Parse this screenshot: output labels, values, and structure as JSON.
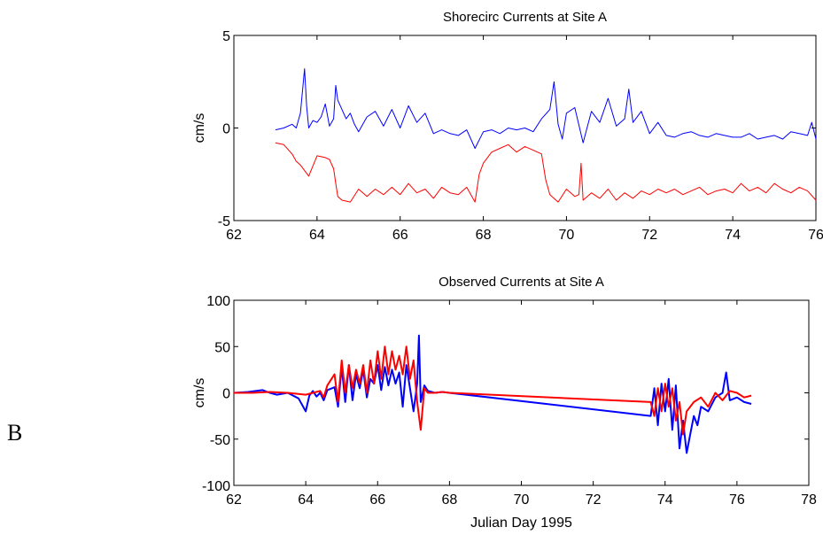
{
  "panel_label": "B",
  "chart_data": [
    {
      "type": "line",
      "title": "Shorecirc Currents at Site A",
      "xlabel": "",
      "ylabel": "cm/s",
      "xlim": [
        62,
        76
      ],
      "ylim": [
        -5,
        5
      ],
      "xticks": [
        62,
        64,
        66,
        68,
        70,
        72,
        74,
        76
      ],
      "yticks": [
        -5,
        0,
        5
      ],
      "grid": false,
      "series": [
        {
          "color": "#0000ff",
          "x": [
            63.0,
            63.2,
            63.4,
            63.5,
            63.6,
            63.7,
            63.75,
            63.8,
            63.9,
            64.0,
            64.1,
            64.2,
            64.3,
            64.4,
            64.45,
            64.5,
            64.6,
            64.7,
            64.8,
            64.9,
            65.0,
            65.2,
            65.4,
            65.6,
            65.8,
            66.0,
            66.2,
            66.4,
            66.6,
            66.8,
            67.0,
            67.2,
            67.4,
            67.6,
            67.8,
            68.0,
            68.2,
            68.4,
            68.6,
            68.8,
            69.0,
            69.2,
            69.4,
            69.6,
            69.7,
            69.8,
            69.9,
            70.0,
            70.2,
            70.4,
            70.6,
            70.8,
            71.0,
            71.2,
            71.4,
            71.5,
            71.6,
            71.8,
            72.0,
            72.2,
            72.4,
            72.6,
            72.8,
            73.0,
            73.2,
            73.4,
            73.6,
            73.8,
            74.0,
            74.2,
            74.4,
            74.6,
            74.8,
            75.0,
            75.2,
            75.4,
            75.6,
            75.8,
            75.9,
            76.0
          ],
          "y": [
            -0.1,
            0.0,
            0.2,
            0.0,
            0.8,
            3.2,
            1.2,
            0.0,
            0.4,
            0.3,
            0.6,
            1.3,
            0.1,
            0.5,
            2.3,
            1.5,
            1.0,
            0.5,
            0.8,
            0.2,
            -0.2,
            0.6,
            0.9,
            0.1,
            1.0,
            0.0,
            1.2,
            0.3,
            0.8,
            -0.3,
            -0.1,
            -0.3,
            -0.4,
            -0.1,
            -1.1,
            -0.2,
            -0.1,
            -0.3,
            0.0,
            -0.1,
            0.0,
            -0.2,
            0.5,
            1.0,
            2.5,
            0.2,
            -0.6,
            0.8,
            1.1,
            -0.8,
            0.9,
            0.3,
            1.6,
            0.1,
            0.5,
            2.1,
            0.3,
            0.9,
            -0.3,
            0.3,
            -0.4,
            -0.5,
            -0.3,
            -0.2,
            -0.4,
            -0.5,
            -0.3,
            -0.4,
            -0.5,
            -0.5,
            -0.3,
            -0.6,
            -0.5,
            -0.4,
            -0.6,
            -0.2,
            -0.3,
            -0.4,
            0.3,
            -0.6
          ]
        },
        {
          "color": "#ff0000",
          "x": [
            63.0,
            63.2,
            63.4,
            63.5,
            63.6,
            63.8,
            64.0,
            64.2,
            64.3,
            64.4,
            64.45,
            64.5,
            64.6,
            64.8,
            65.0,
            65.2,
            65.4,
            65.6,
            65.8,
            66.0,
            66.2,
            66.4,
            66.6,
            66.8,
            67.0,
            67.2,
            67.4,
            67.6,
            67.8,
            67.9,
            68.0,
            68.2,
            68.4,
            68.6,
            68.8,
            69.0,
            69.2,
            69.4,
            69.5,
            69.6,
            69.8,
            70.0,
            70.2,
            70.3,
            70.35,
            70.4,
            70.6,
            70.8,
            71.0,
            71.2,
            71.4,
            71.6,
            71.8,
            72.0,
            72.2,
            72.4,
            72.6,
            72.8,
            73.0,
            73.2,
            73.4,
            73.6,
            73.8,
            74.0,
            74.2,
            74.4,
            74.6,
            74.8,
            75.0,
            75.2,
            75.4,
            75.6,
            75.8,
            76.0
          ],
          "y": [
            -0.8,
            -0.9,
            -1.4,
            -1.8,
            -2.0,
            -2.6,
            -1.5,
            -1.6,
            -1.7,
            -2.2,
            -3.0,
            -3.7,
            -3.9,
            -4.0,
            -3.3,
            -3.7,
            -3.3,
            -3.6,
            -3.2,
            -3.6,
            -3.0,
            -3.5,
            -3.3,
            -3.8,
            -3.2,
            -3.5,
            -3.6,
            -3.2,
            -4.0,
            -2.5,
            -1.9,
            -1.3,
            -1.1,
            -0.9,
            -1.3,
            -1.0,
            -1.2,
            -1.4,
            -2.8,
            -3.6,
            -4.0,
            -3.3,
            -3.7,
            -3.6,
            -1.9,
            -3.9,
            -3.5,
            -3.8,
            -3.3,
            -3.9,
            -3.5,
            -3.8,
            -3.4,
            -3.6,
            -3.3,
            -3.5,
            -3.3,
            -3.6,
            -3.4,
            -3.2,
            -3.6,
            -3.4,
            -3.3,
            -3.5,
            -3.0,
            -3.4,
            -3.2,
            -3.5,
            -3.0,
            -3.3,
            -3.5,
            -3.2,
            -3.4,
            -3.9
          ]
        }
      ]
    },
    {
      "type": "line",
      "title": "Observed Currents at Site A",
      "xlabel": "Julian Day 1995",
      "ylabel": "cm/s",
      "xlim": [
        62,
        78
      ],
      "ylim": [
        -100,
        100
      ],
      "xticks": [
        62,
        64,
        66,
        68,
        70,
        72,
        74,
        76,
        78
      ],
      "yticks": [
        -100,
        -50,
        0,
        50,
        100
      ],
      "grid": false,
      "series": [
        {
          "color": "#0000ff",
          "x": [
            62.0,
            62.4,
            62.8,
            63.0,
            63.2,
            63.5,
            63.8,
            64.0,
            64.1,
            64.2,
            64.3,
            64.4,
            64.5,
            64.6,
            64.8,
            64.9,
            65.0,
            65.1,
            65.2,
            65.3,
            65.4,
            65.5,
            65.6,
            65.7,
            65.8,
            65.9,
            66.0,
            66.1,
            66.2,
            66.3,
            66.4,
            66.5,
            66.6,
            66.7,
            66.8,
            66.9,
            67.0,
            67.1,
            67.15,
            67.2,
            67.3,
            67.4,
            67.6,
            67.8,
            68.0,
            73.6,
            73.7,
            73.8,
            73.9,
            74.0,
            74.1,
            74.2,
            74.3,
            74.4,
            74.5,
            74.6,
            74.7,
            74.8,
            74.9,
            75.0,
            75.2,
            75.4,
            75.6,
            75.7,
            75.8,
            76.0,
            76.2,
            76.4
          ],
          "y": [
            0,
            1,
            3,
            0,
            -2,
            0,
            -6,
            -20,
            -3,
            2,
            -4,
            0,
            -8,
            3,
            6,
            -15,
            28,
            -10,
            30,
            -8,
            20,
            5,
            25,
            -5,
            15,
            10,
            30,
            3,
            28,
            8,
            25,
            10,
            22,
            -15,
            30,
            5,
            -20,
            10,
            62,
            -10,
            8,
            2,
            0,
            1,
            0,
            -25,
            5,
            -35,
            10,
            -20,
            15,
            -40,
            8,
            -60,
            -30,
            -65,
            -45,
            -25,
            -35,
            -15,
            -20,
            -5,
            0,
            22,
            -8,
            -5,
            -10,
            -12
          ]
        },
        {
          "color": "#ff0000",
          "x": [
            62.0,
            62.5,
            63.0,
            63.5,
            64.0,
            64.2,
            64.4,
            64.5,
            64.6,
            64.8,
            64.9,
            65.0,
            65.1,
            65.2,
            65.3,
            65.4,
            65.5,
            65.6,
            65.7,
            65.8,
            65.9,
            66.0,
            66.1,
            66.2,
            66.3,
            66.4,
            66.5,
            66.6,
            66.7,
            66.8,
            66.9,
            67.0,
            67.1,
            67.2,
            67.3,
            67.4,
            67.6,
            67.8,
            68.0,
            73.6,
            73.7,
            73.8,
            73.9,
            74.0,
            74.1,
            74.2,
            74.3,
            74.4,
            74.5,
            74.6,
            74.8,
            75.0,
            75.2,
            75.4,
            75.6,
            75.8,
            76.0,
            76.2,
            76.4
          ],
          "y": [
            0,
            0,
            1,
            0,
            -2,
            0,
            2,
            -5,
            8,
            20,
            -10,
            35,
            0,
            30,
            5,
            25,
            10,
            30,
            0,
            35,
            10,
            45,
            15,
            50,
            20,
            45,
            25,
            40,
            20,
            50,
            15,
            35,
            -10,
            -40,
            5,
            0,
            0,
            1,
            0,
            -10,
            -25,
            5,
            -20,
            10,
            -15,
            5,
            -30,
            -10,
            -45,
            -20,
            -10,
            -5,
            -15,
            0,
            -8,
            2,
            0,
            -5,
            -3
          ]
        }
      ]
    }
  ]
}
